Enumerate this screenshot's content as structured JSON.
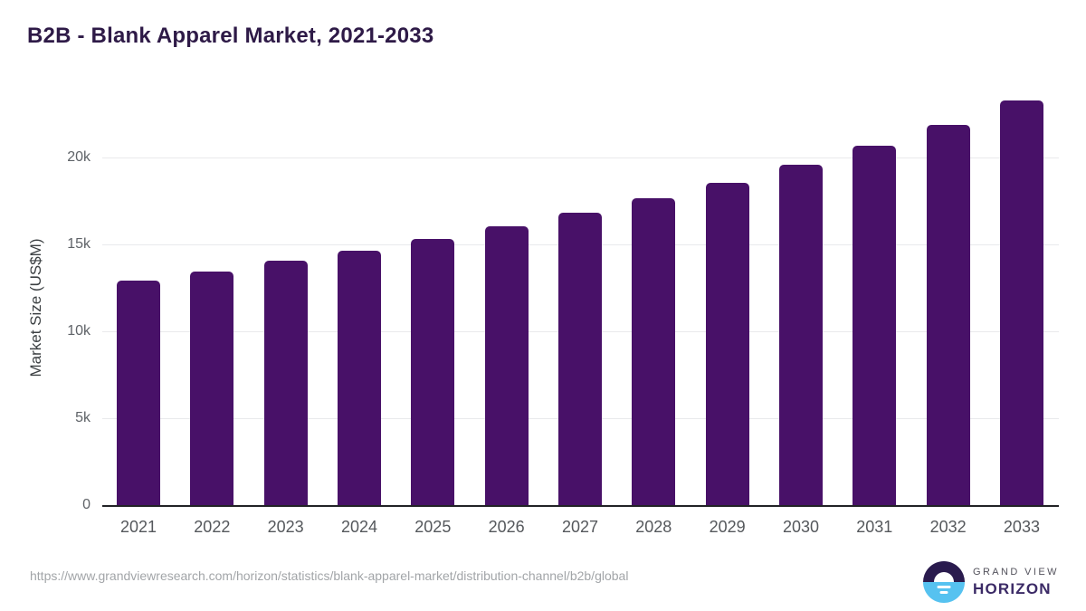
{
  "page": {
    "title": "B2B - Blank Apparel Market, 2021-2033",
    "source_url": "https://www.grandviewresearch.com/horizon/statistics/blank-apparel-market/distribution-channel/b2b/global"
  },
  "logo": {
    "line1": "GRAND VIEW",
    "line2": "HORIZON",
    "icon": "sunrise-horizon-icon",
    "icon_top_color": "#2a1b4e",
    "icon_bottom_color": "#56c2f0"
  },
  "colors": {
    "bar": "#481168",
    "title_text": "#2e1a47",
    "tick_text": "#5f6368",
    "axis_title_text": "#3c4043",
    "gridline": "#e9eaec",
    "baseline": "#222326",
    "url_text": "#a2a5a8"
  },
  "chart_data": {
    "type": "bar",
    "title": "B2B - Blank Apparel Market, 2021-2033",
    "xlabel": "",
    "ylabel": "Market Size (US$M)",
    "categories": [
      "2021",
      "2022",
      "2023",
      "2024",
      "2025",
      "2026",
      "2027",
      "2028",
      "2029",
      "2030",
      "2031",
      "2032",
      "2033"
    ],
    "values": [
      12900,
      13450,
      14050,
      14650,
      15300,
      16050,
      16800,
      17650,
      18550,
      19600,
      20700,
      21900,
      23300
    ],
    "ylim": [
      0,
      24000
    ],
    "yticks": {
      "labels": [
        "0",
        "5k",
        "10k",
        "15k",
        "20k"
      ],
      "values": [
        0,
        5000,
        10000,
        15000,
        20000
      ]
    },
    "grid": "horizontal",
    "legend": "none",
    "bar_color": "#481168"
  }
}
